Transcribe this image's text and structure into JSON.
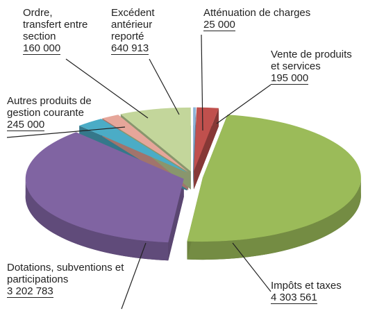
{
  "chart_data": {
    "type": "pie",
    "categories": [
      "Atténuation de charges",
      "Vente de produits et services",
      "Impôts et taxes",
      "Dotations, subventions et participations",
      "Autres produits de gestion courante",
      "Ordre, transfert entre section",
      "Excédent antérieur reporté"
    ],
    "values": [
      25000,
      195000,
      4303561,
      3202783,
      245000,
      160000,
      640913
    ],
    "value_labels": [
      "25 000",
      "195 000",
      "4 303 561",
      "3 202 783",
      "245 000",
      "160 000",
      "640 913"
    ],
    "colors": [
      "#8fb4d8",
      "#c0504d",
      "#9bbb59",
      "#8064a2",
      "#4bacc6",
      "#e6a69a",
      "#c3d69b"
    ]
  }
}
